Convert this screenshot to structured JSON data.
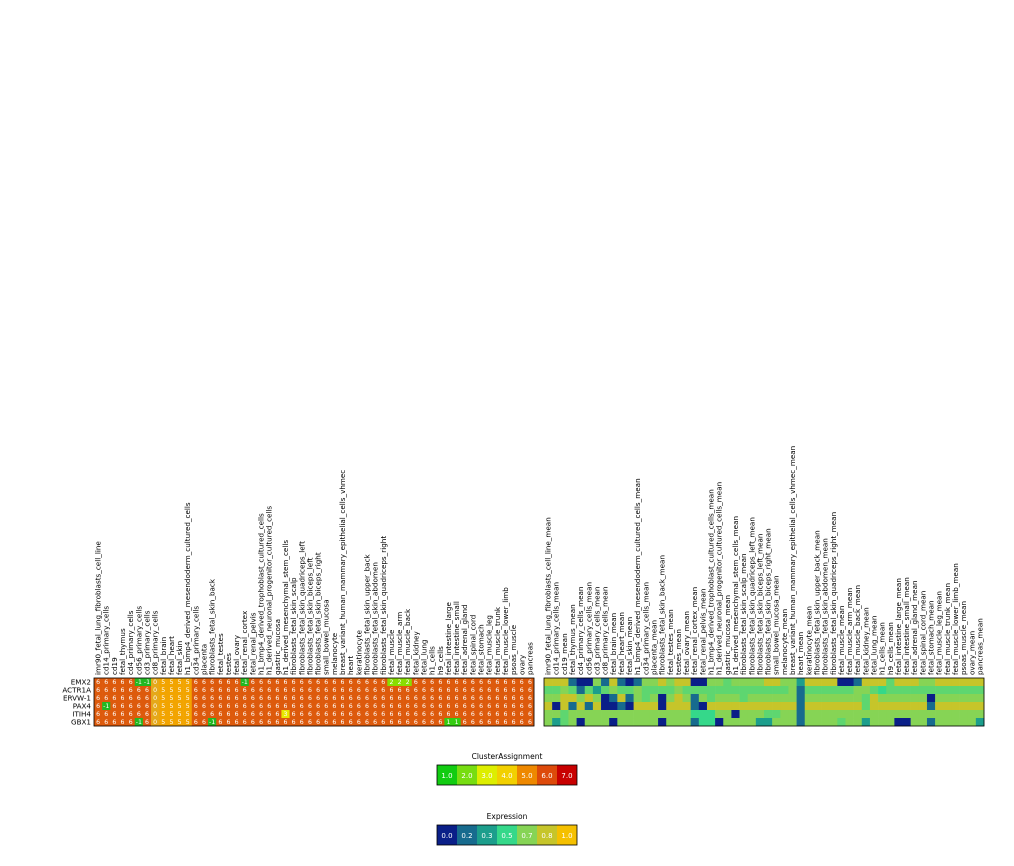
{
  "chart_data": [
    {
      "type": "heatmap",
      "title": "",
      "rows": [
        "EMX2",
        "ACTR1A",
        "ERVW-1",
        "PAX4",
        "ITIH4",
        "GBX1"
      ],
      "columns": [
        "imr90_fetal_lung_fibroblasts_cell_line",
        "cd14_primary_cells",
        "cd19",
        "fetal_thymus",
        "cd4_primary_cells",
        "cd56_primary_cells",
        "cd3_primary_cells",
        "cd8_primary_cells",
        "fetal_brain",
        "fetal_heart",
        "fetal_skin",
        "h1_bmp4_derived_mesendoderm_cultured_cells",
        "cd34_primary_cells",
        "placenta",
        "fibroblasts_fetal_skin_back",
        "fetal_testes",
        "testes",
        "fetal_ovary",
        "fetal_renal_cortex",
        "fetal_renal_pelvis",
        "h1_bmp4_derived_trophoblast_cultured_cells",
        "h1_derived_neuronal_progenitor_cultured_cells",
        "gastric_mucosa",
        "h1_derived_mesenchymal_stem_cells",
        "fibroblasts_fetal_skin_scalp",
        "fibroblasts_fetal_skin_quadriceps_left",
        "fibroblasts_fetal_skin_biceps_left",
        "fibroblasts_fetal_skin_biceps_right",
        "small_bowel_mucosa",
        "melanocyte",
        "breast_variant_human_mammary_epithelial_cells_vhmec",
        "heart",
        "keratinocyte",
        "fibroblasts_fetal_skin_upper_back",
        "fibroblasts_fetal_skin_abdomen",
        "fibroblasts_fetal_skin_quadriceps_right",
        "fetal_muscle",
        "fetal_muscle_arm",
        "fetal_muscle_back",
        "fetal_kidney",
        "fetal_lung",
        "h1_cells",
        "h9_cells",
        "fetal_intestine_large",
        "fetal_intestine_small",
        "fetal_adrenal_gland",
        "fetal_spinal_cord",
        "fetal_stomach",
        "fetal_muscle_leg",
        "fetal_muscle_trunk",
        "fetal_muscle_lower_limb",
        "psoas_muscle",
        "ovary",
        "pancreas"
      ],
      "values": [
        [
          6,
          6,
          6,
          6,
          6,
          -1,
          -1,
          0,
          5,
          5,
          5,
          5,
          6,
          6,
          6,
          6,
          6,
          6,
          -1,
          6,
          6,
          6,
          6,
          6,
          6,
          6,
          6,
          6,
          6,
          6,
          6,
          6,
          6,
          6,
          6,
          6,
          2,
          2,
          2,
          6,
          6,
          6,
          6,
          6,
          6,
          6,
          6,
          6,
          6,
          6,
          6,
          6,
          6,
          6
        ],
        [
          6,
          6,
          6,
          6,
          6,
          6,
          6,
          0,
          5,
          5,
          5,
          5,
          6,
          6,
          6,
          6,
          6,
          6,
          6,
          6,
          6,
          6,
          6,
          6,
          6,
          6,
          6,
          6,
          6,
          6,
          6,
          6,
          6,
          6,
          6,
          6,
          6,
          6,
          6,
          6,
          6,
          6,
          6,
          6,
          6,
          6,
          6,
          6,
          6,
          6,
          6,
          6,
          6,
          6
        ],
        [
          6,
          6,
          6,
          6,
          6,
          6,
          6,
          0,
          5,
          5,
          5,
          5,
          6,
          6,
          6,
          6,
          6,
          6,
          6,
          6,
          6,
          6,
          6,
          6,
          6,
          6,
          6,
          6,
          6,
          6,
          6,
          6,
          6,
          6,
          6,
          6,
          6,
          6,
          6,
          6,
          6,
          6,
          6,
          6,
          6,
          6,
          6,
          6,
          6,
          6,
          6,
          6,
          6,
          6
        ],
        [
          6,
          -1,
          6,
          6,
          6,
          6,
          6,
          0,
          5,
          5,
          5,
          5,
          6,
          6,
          6,
          6,
          6,
          6,
          6,
          6,
          6,
          6,
          6,
          6,
          6,
          6,
          6,
          6,
          6,
          6,
          6,
          6,
          6,
          6,
          6,
          6,
          6,
          6,
          6,
          6,
          6,
          6,
          6,
          6,
          6,
          6,
          6,
          6,
          6,
          6,
          6,
          6,
          6,
          6
        ],
        [
          6,
          6,
          6,
          6,
          6,
          6,
          6,
          0,
          5,
          5,
          5,
          5,
          6,
          6,
          6,
          6,
          6,
          6,
          6,
          6,
          6,
          6,
          6,
          3,
          6,
          6,
          6,
          6,
          6,
          6,
          6,
          6,
          6,
          6,
          6,
          6,
          6,
          6,
          6,
          6,
          6,
          6,
          6,
          6,
          6,
          6,
          6,
          6,
          6,
          6,
          6,
          6,
          6,
          6
        ],
        [
          6,
          6,
          6,
          6,
          6,
          -1,
          6,
          0,
          5,
          5,
          5,
          5,
          6,
          6,
          -1,
          6,
          6,
          6,
          6,
          6,
          6,
          6,
          6,
          6,
          6,
          6,
          6,
          6,
          6,
          6,
          6,
          6,
          6,
          6,
          6,
          6,
          6,
          6,
          6,
          6,
          6,
          6,
          6,
          1,
          1,
          6,
          6,
          6,
          6,
          6,
          6,
          6,
          6,
          6
        ]
      ],
      "color_scale": {
        "-1": "#22b822",
        "0": "#e5a81a",
        "1": "#33cc11",
        "2": "#88dd00",
        "3": "#e8e800",
        "5": "#f2a400",
        "6": "#dd5a0c"
      }
    },
    {
      "type": "heatmap",
      "title": "",
      "rows": [
        "EMX2",
        "ACTR1A",
        "ERVW-1",
        "PAX4",
        "ITIH4",
        "GBX1"
      ],
      "columns": [
        "imr90_fetal_lung_fibroblasts_cell_line_mean",
        "cd14_primary_cells_mean",
        "cd19_mean",
        "fetal_thymus_mean",
        "cd4_primary_cells_mean",
        "cd56_primary_cells_mean",
        "cd3_primary_cells_mean",
        "cd8_primary_cells_mean",
        "fetal_brain_mean",
        "fetal_heart_mean",
        "fetal_skin_mean",
        "h1_bmp4_derived_mesendoderm_cultured_cells_mean",
        "cd34_primary_cells_mean",
        "placenta_mean",
        "fibroblasts_fetal_skin_back_mean",
        "fetal_testes_mean",
        "testes_mean",
        "fetal_ovary_mean",
        "fetal_renal_cortex_mean",
        "fetal_renal_pelvis_mean",
        "h1_bmp4_derived_trophoblast_cultured_cells_mean",
        "h1_derived_neuronal_progenitor_cultured_cells_mean",
        "gastric_mucosa_mean",
        "h1_derived_mesenchymal_stem_cells_mean",
        "fibroblasts_fetal_skin_scalp_mean",
        "fibroblasts_fetal_skin_quadriceps_left_mean",
        "fibroblasts_fetal_skin_biceps_left_mean",
        "fibroblasts_fetal_skin_biceps_right_mean",
        "small_bowel_mucosa_mean",
        "melanocyte_mean",
        "breast_variant_human_mammary_epithelial_cells_vhmec_mean",
        "heart_mean",
        "keratinocyte_mean",
        "fibroblasts_fetal_skin_upper_back_mean",
        "fibroblasts_fetal_skin_abdomen_mean",
        "fibroblasts_fetal_skin_quadriceps_right_mean",
        "fetal_muscle_mean",
        "fetal_muscle_arm_mean",
        "fetal_muscle_back_mean",
        "fetal_kidney_mean",
        "fetal_lung_mean",
        "h1_cells_mean",
        "h9_cells_mean",
        "fetal_intestine_large_mean",
        "fetal_intestine_small_mean",
        "fetal_adrenal_gland_mean",
        "fetal_spinal_cord_mean",
        "fetal_stomach_mean",
        "fetal_muscle_leg_mean",
        "fetal_muscle_trunk_mean",
        "fetal_muscle_lower_limb_mean",
        "psoas_muscle_mean",
        "ovary_mean",
        "pancreas_mean"
      ],
      "values": [
        [
          0.8,
          0.8,
          0.8,
          0.2,
          0.0,
          0.0,
          0.7,
          0.2,
          0.8,
          0.2,
          0.0,
          0.2,
          0.7,
          0.7,
          0.8,
          0.7,
          0.8,
          0.8,
          0.0,
          0.0,
          0.7,
          0.7,
          0.6,
          0.7,
          0.7,
          0.7,
          0.7,
          0.8,
          0.8,
          0.7,
          0.7,
          0.3,
          0.8,
          0.8,
          0.8,
          0.8,
          0.0,
          0.0,
          0.2,
          0.8,
          0.8,
          0.8,
          0.6,
          0.8,
          0.8,
          0.8,
          0.7,
          0.7,
          0.8,
          0.8,
          0.8,
          0.8,
          0.8,
          0.8
        ],
        [
          0.6,
          0.6,
          0.7,
          0.6,
          0.2,
          0.6,
          0.3,
          0.6,
          0.7,
          0.6,
          0.6,
          0.7,
          0.6,
          0.6,
          0.6,
          0.6,
          0.7,
          0.6,
          0.6,
          0.6,
          0.6,
          0.6,
          0.6,
          0.6,
          0.6,
          0.6,
          0.6,
          0.6,
          0.6,
          0.6,
          0.7,
          0.2,
          0.6,
          0.6,
          0.6,
          0.6,
          0.6,
          0.6,
          0.7,
          0.7,
          0.6,
          0.5,
          0.6,
          0.6,
          0.6,
          0.6,
          0.6,
          0.6,
          0.6,
          0.6,
          0.6,
          0.6,
          0.6,
          0.6
        ],
        [
          0.7,
          0.7,
          0.8,
          0.8,
          0.7,
          0.8,
          0.7,
          0.0,
          0.2,
          0.8,
          0.2,
          0.7,
          0.6,
          0.7,
          0.0,
          0.7,
          0.8,
          0.7,
          0.2,
          0.7,
          0.6,
          0.7,
          0.7,
          0.7,
          0.6,
          0.7,
          0.7,
          0.7,
          0.7,
          0.7,
          0.7,
          0.2,
          0.7,
          0.7,
          0.7,
          0.7,
          0.7,
          0.7,
          0.7,
          0.6,
          0.8,
          0.7,
          0.7,
          0.7,
          0.7,
          0.7,
          0.7,
          0.0,
          0.7,
          0.7,
          0.7,
          0.7,
          0.7,
          0.7
        ],
        [
          0.8,
          0.0,
          0.8,
          0.2,
          0.8,
          0.2,
          0.8,
          0.0,
          0.0,
          0.2,
          0.0,
          0.8,
          0.8,
          0.8,
          0.0,
          0.8,
          0.8,
          0.8,
          0.2,
          0.0,
          0.8,
          0.8,
          0.8,
          0.8,
          0.8,
          0.8,
          0.8,
          0.8,
          0.8,
          0.8,
          0.8,
          0.2,
          0.8,
          0.8,
          0.8,
          0.8,
          0.8,
          0.8,
          0.8,
          0.6,
          0.8,
          0.8,
          0.8,
          0.8,
          0.8,
          0.8,
          0.8,
          0.2,
          0.8,
          0.8,
          0.8,
          0.8,
          0.8,
          0.8
        ],
        [
          0.7,
          0.7,
          0.6,
          0.7,
          0.7,
          0.7,
          0.7,
          0.7,
          0.7,
          0.7,
          0.7,
          0.7,
          0.7,
          0.7,
          0.7,
          0.7,
          0.7,
          0.7,
          0.5,
          0.5,
          0.5,
          0.7,
          0.7,
          0.0,
          0.7,
          0.7,
          0.7,
          0.6,
          0.6,
          0.7,
          0.7,
          0.2,
          0.7,
          0.7,
          0.7,
          0.7,
          0.7,
          0.7,
          0.7,
          0.7,
          0.7,
          0.7,
          0.7,
          0.7,
          0.7,
          0.7,
          0.7,
          0.7,
          0.7,
          0.7,
          0.7,
          0.7,
          0.7,
          0.7
        ],
        [
          0.7,
          0.3,
          0.6,
          0.7,
          0.0,
          0.7,
          0.7,
          0.7,
          0.0,
          0.7,
          0.7,
          0.7,
          0.7,
          0.7,
          0.0,
          0.7,
          0.7,
          0.7,
          0.2,
          0.5,
          0.5,
          0.0,
          0.7,
          0.7,
          0.7,
          0.7,
          0.3,
          0.3,
          0.7,
          0.7,
          0.7,
          0.2,
          0.7,
          0.7,
          0.7,
          0.7,
          0.6,
          0.7,
          0.7,
          0.3,
          0.7,
          0.7,
          0.7,
          0.0,
          0.0,
          0.7,
          0.7,
          0.2,
          0.7,
          0.7,
          0.7,
          0.7,
          0.7,
          0.3
        ]
      ]
    },
    {
      "type": "legend",
      "title": "ClusterAssignment",
      "items": [
        {
          "label": "1.0",
          "color": "#11cc11"
        },
        {
          "label": "2.0",
          "color": "#77dd11"
        },
        {
          "label": "3.0",
          "color": "#ddee00"
        },
        {
          "label": "4.0",
          "color": "#f2d000"
        },
        {
          "label": "5.0",
          "color": "#ee8800"
        },
        {
          "label": "6.0",
          "color": "#dd4a0a"
        },
        {
          "label": "7.0",
          "color": "#c80000"
        }
      ]
    },
    {
      "type": "legend",
      "title": "Expression",
      "items": [
        {
          "label": "0.0",
          "color": "#0a1f88"
        },
        {
          "label": "0.2",
          "color": "#176b8e"
        },
        {
          "label": "0.3",
          "color": "#1c9e8c"
        },
        {
          "label": "0.5",
          "color": "#35d88a"
        },
        {
          "label": "0.7",
          "color": "#86d455"
        },
        {
          "label": "0.8",
          "color": "#c6c52a"
        },
        {
          "label": "1.0",
          "color": "#f5c000"
        }
      ]
    }
  ]
}
